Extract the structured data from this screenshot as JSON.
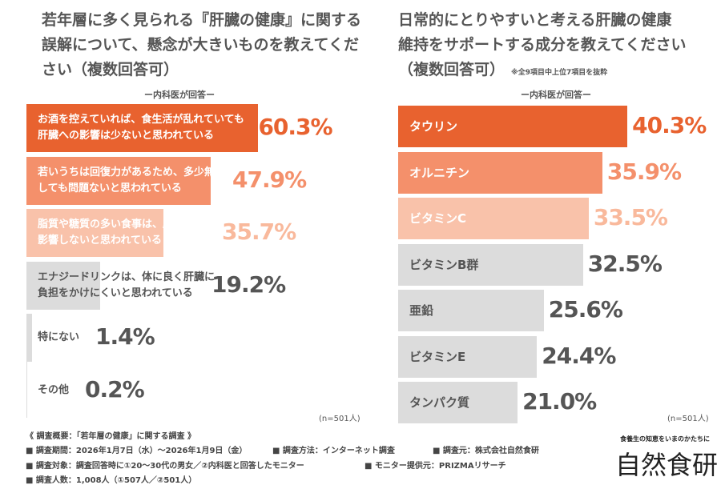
{
  "chart_data": [
    {
      "type": "bar",
      "orientation": "horizontal",
      "title": "若年層に多く見られる『肝臓の健康』に関する誤解について、懸念が大きいものを教えてください（複数回答可）",
      "subtitle": "ー内科医が回答ー",
      "categories": [
        "お酒を控えていれば、食生活が乱れていても\n肝臓への影響は少ないと思われている",
        "若いうちは回復力があるため、多少無理を\nしても問題ないと思われている",
        "脂質や糖質の多い食事は、肝臓にあまり\n影響しないと思われている",
        "エナジードリンクは、体に良く肝臓に\n負担をかけにくいと思われている",
        "特にない",
        "その他"
      ],
      "values": [
        60.3,
        47.9,
        35.7,
        19.2,
        1.4,
        0.2
      ],
      "value_labels": [
        "60.3%",
        "47.9%",
        "35.7%",
        "19.2%",
        "1.4%",
        "0.2%"
      ],
      "colors": [
        "#e8622f",
        "#f4906b",
        "#f9c2aa",
        "#dcdcdc",
        "#dcdcdc",
        "#dcdcdc"
      ],
      "label_colors": [
        "#fff",
        "#fff",
        "#fff",
        "#555",
        "#555",
        "#555"
      ],
      "value_colors": [
        "#e8622f",
        "#f4906b",
        "#f9b99c",
        "#555",
        "#555",
        "#555"
      ],
      "n": "(n=501人)"
    },
    {
      "type": "bar",
      "orientation": "horizontal",
      "title": "日常的にとりやすいと考える肝臓の健康維持をサポートする成分を教えてください（複数回答可）",
      "note": "※全9項目中上位7項目を抜粋",
      "subtitle": "ー内科医が回答ー",
      "categories": [
        "タウリン",
        "オルニチン",
        "ビタミンC",
        "ビタミンB群",
        "亜鉛",
        "ビタミンE",
        "タンパク質"
      ],
      "values": [
        40.3,
        35.9,
        33.5,
        32.5,
        25.6,
        24.4,
        21.0
      ],
      "value_labels": [
        "40.3%",
        "35.9%",
        "33.5%",
        "32.5%",
        "25.6%",
        "24.4%",
        "21.0%"
      ],
      "colors": [
        "#e8622f",
        "#f4906b",
        "#f9c2aa",
        "#dcdcdc",
        "#dcdcdc",
        "#dcdcdc",
        "#dcdcdc"
      ],
      "label_colors": [
        "#fff",
        "#fff",
        "#fff",
        "#555",
        "#555",
        "#555",
        "#555"
      ],
      "value_colors": [
        "#e8622f",
        "#f4906b",
        "#f9b99c",
        "#555",
        "#555",
        "#555",
        "#555"
      ],
      "n": "(n=501人)"
    }
  ],
  "footer": {
    "lines": [
      "《 調査概要：「若年層の健康」に関する調査 》",
      "■ 調査期間：2026年1月7日（水）～2026年1月9日（金）",
      "■ 調査方法：インターネット調査",
      "■ 調査元：株式会社自然食研",
      "■ 調査対象：調査回答時に①20～30代の男女／②内科医と回答したモニター",
      "■ モニター提供元：PRIZMAリサーチ",
      "■ 調査人数：1,008人（①507人／②501人）"
    ],
    "logo_tagline": "食養生の知恵をいまのかたちに",
    "logo": "自然食研"
  }
}
